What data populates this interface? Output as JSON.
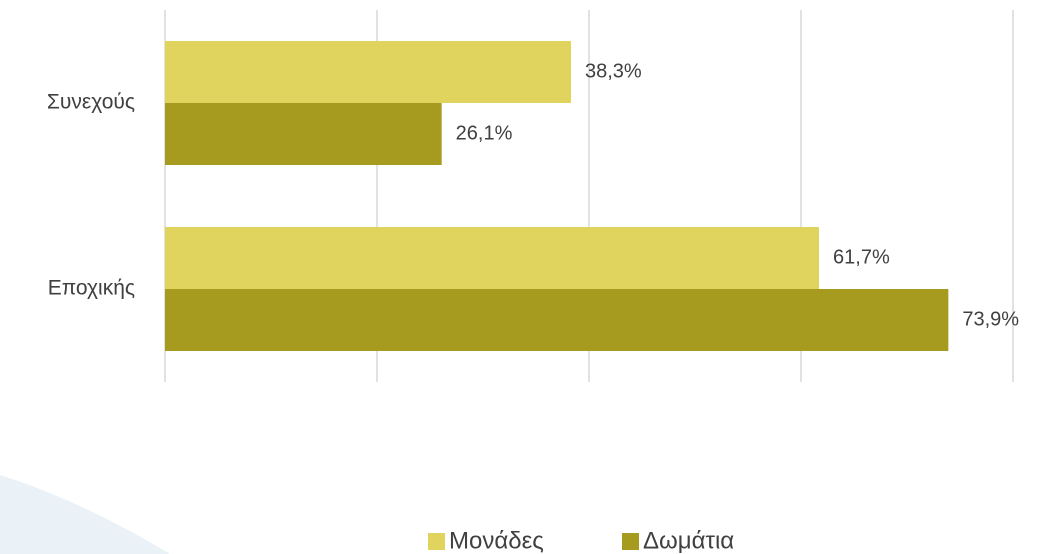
{
  "chart_data": {
    "type": "bar",
    "orientation": "horizontal",
    "categories": [
      "Συνεχούς",
      "Εποχικής"
    ],
    "series": [
      {
        "name": "Μονάδες",
        "color": "#e0d35e",
        "values": [
          38.3,
          61.7
        ],
        "value_labels": [
          "38,3%",
          "61,7%"
        ]
      },
      {
        "name": "Δωμάτια",
        "color": "#a69a1f",
        "values": [
          26.1,
          73.9
        ],
        "value_labels": [
          "26,1%",
          "73,9%"
        ]
      }
    ],
    "xlim": [
      0,
      80
    ],
    "xticks": [
      0,
      20,
      40,
      60,
      80
    ],
    "grid": true,
    "legend": "bottom"
  }
}
